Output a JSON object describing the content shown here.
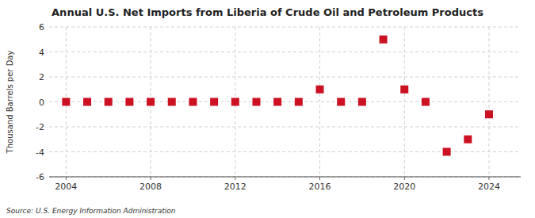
{
  "chart_data": {
    "type": "scatter",
    "title": "Annual U.S. Net Imports from Liberia of Crude Oil and Petroleum Products",
    "y_label": "Thousand Barrels per Day",
    "annotations": [
      "Source: U.S. Energy Information Administration"
    ],
    "x": [
      2004,
      2005,
      2006,
      2007,
      2008,
      2009,
      2010,
      2011,
      2012,
      2013,
      2014,
      2015,
      2016,
      2017,
      2018,
      2019,
      2020,
      2021,
      2022,
      2023,
      2024
    ],
    "values": [
      0,
      0,
      0,
      0,
      0,
      0,
      0,
      0,
      0,
      0,
      0,
      0,
      1,
      0,
      0,
      5,
      1,
      0,
      -4,
      -3,
      -1
    ],
    "color": "#cc1122",
    "marker": "square",
    "xlim": [
      2003.2,
      2025.5
    ],
    "ylim": [
      -6,
      6
    ],
    "xticks": [
      2004,
      2008,
      2012,
      2016,
      2020,
      2024
    ],
    "yticks": [
      -6,
      -4,
      -2,
      0,
      2,
      4,
      6
    ],
    "grid": true
  }
}
